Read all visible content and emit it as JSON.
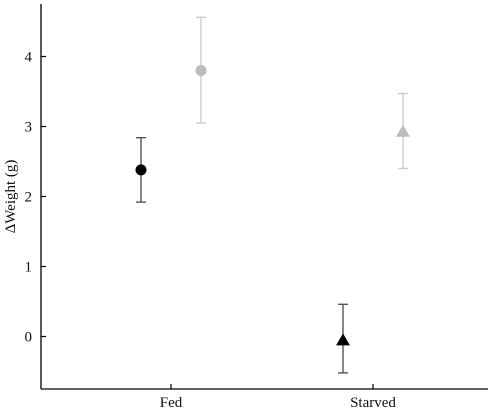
{
  "chart_data": {
    "type": "scatter",
    "categories": [
      "Fed",
      "Starved"
    ],
    "ylabel": "ΔWeight (g)",
    "xlabel": "",
    "ylim": [
      -0.75,
      4.75
    ],
    "yticks": [
      0,
      1,
      2,
      3,
      4
    ],
    "grid": false,
    "series": [
      {
        "marker_by_category": [
          "circle",
          "triangle"
        ],
        "color": "#000000",
        "errorbar_color": "#555555",
        "offset": -1,
        "values": [
          2.38,
          -0.05
        ],
        "err_low": [
          1.92,
          -0.52
        ],
        "err_high": [
          2.84,
          0.46
        ]
      },
      {
        "marker_by_category": [
          "circle",
          "triangle"
        ],
        "color": "#bbbbbb",
        "errorbar_color": "#cccccc",
        "offset": 1,
        "values": [
          3.8,
          2.93
        ],
        "err_low": [
          3.05,
          2.4
        ],
        "err_high": [
          4.56,
          3.47
        ]
      }
    ]
  }
}
